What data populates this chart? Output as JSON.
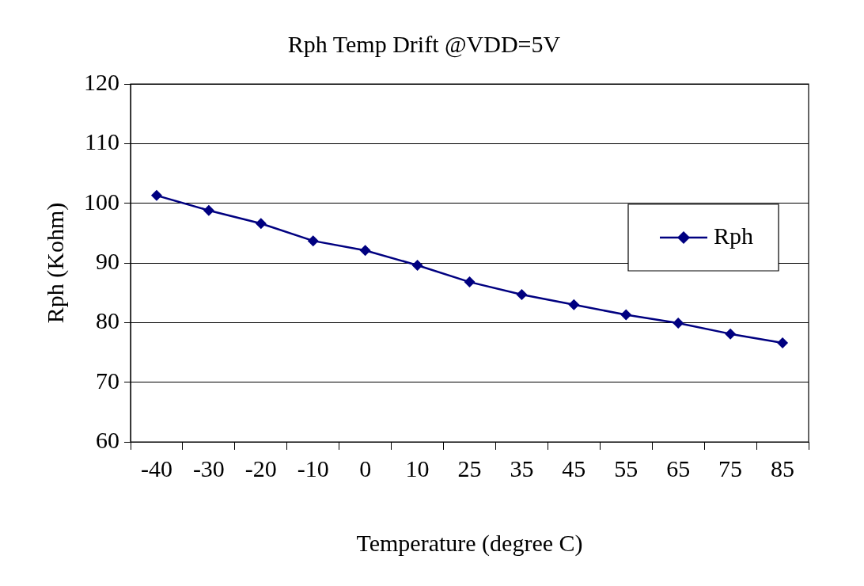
{
  "chart_data": {
    "type": "line",
    "title": "Rph Temp Drift @VDD=5V",
    "xlabel": "Temperature (degree C)",
    "ylabel": "Rph (Kohm)",
    "categories": [
      "-40",
      "-30",
      "-20",
      "-10",
      "0",
      "10",
      "25",
      "35",
      "45",
      "55",
      "65",
      "75",
      "85"
    ],
    "series": [
      {
        "name": "Rph",
        "color": "#000080",
        "values": [
          101.3,
          98.8,
          96.6,
          93.7,
          92.1,
          89.6,
          86.8,
          84.7,
          83.0,
          81.3,
          79.9,
          78.1,
          76.6
        ]
      }
    ],
    "ylim": [
      60,
      120
    ],
    "yticks": [
      60,
      70,
      80,
      90,
      100,
      110,
      120
    ],
    "grid": "y",
    "legend": "right",
    "marker": "diamond",
    "line_style": "solid"
  }
}
